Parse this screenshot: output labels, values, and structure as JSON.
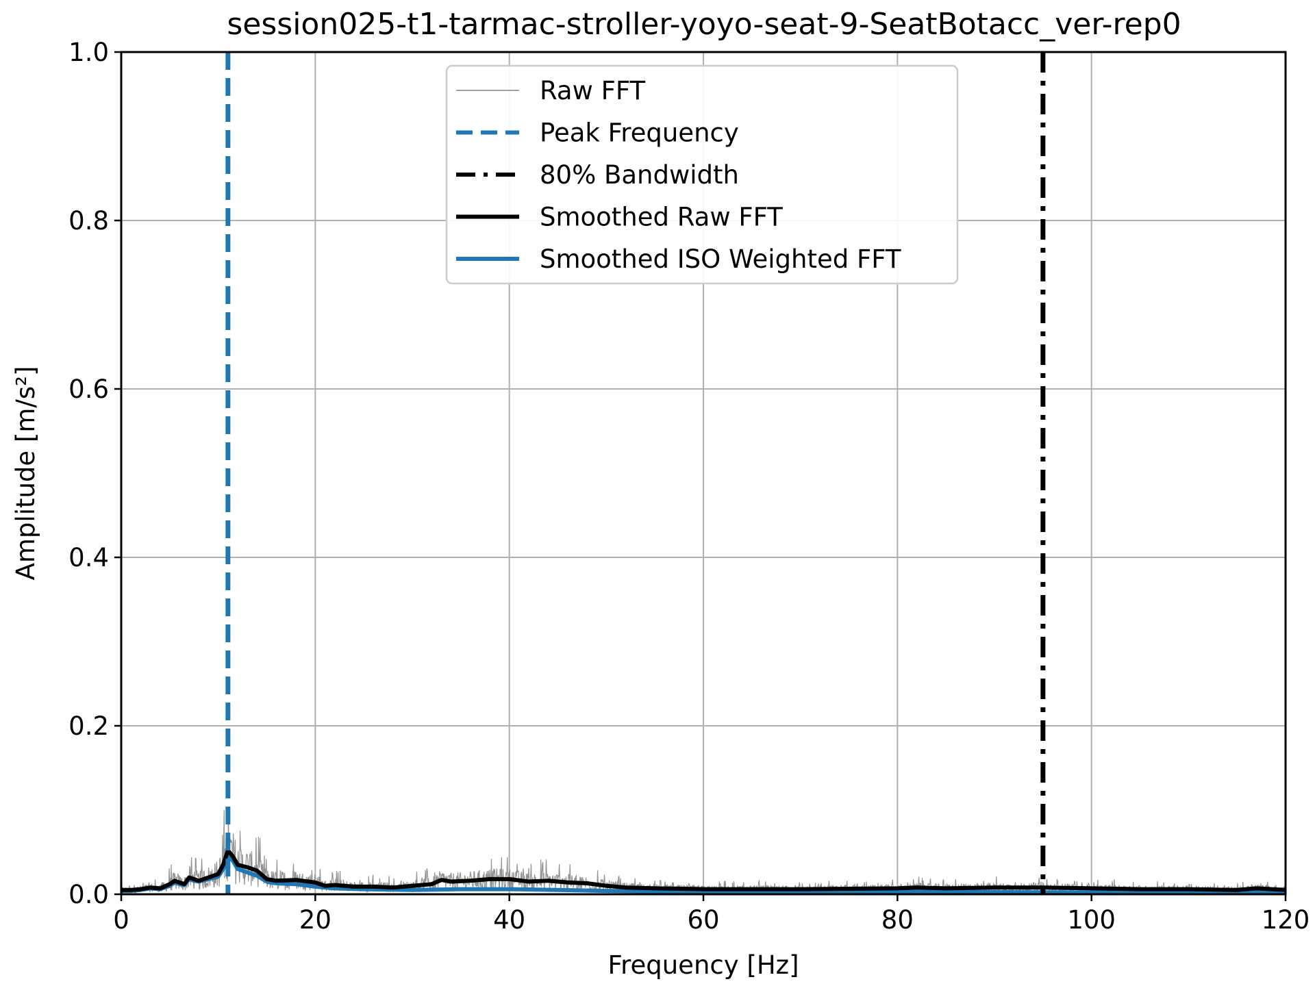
{
  "chart_data": {
    "type": "line",
    "title": "session025-t1-tarmac-stroller-yoyo-seat-9-SeatBotacc_ver-rep0",
    "xlabel": "Frequency [Hz]",
    "ylabel": "Amplitude [m/s²]",
    "xlim": [
      0,
      120
    ],
    "ylim": [
      0,
      1.0
    ],
    "xticks": [
      "0",
      "20",
      "40",
      "60",
      "80",
      "100",
      "120"
    ],
    "yticks": [
      "0.0",
      "0.2",
      "0.4",
      "0.6",
      "0.8",
      "1.0"
    ],
    "grid": true,
    "legend_position": "upper-center",
    "legend": [
      {
        "label": "Raw FFT",
        "color": "#808080",
        "style": "solid-thin"
      },
      {
        "label": "Peak Frequency",
        "color": "#1f77b4",
        "style": "dashed"
      },
      {
        "label": "80% Bandwidth",
        "color": "#000000",
        "style": "dashdot"
      },
      {
        "label": "Smoothed Raw FFT",
        "color": "#000000",
        "style": "solid-thick"
      },
      {
        "label": "Smoothed ISO Weighted FFT",
        "color": "#1f77b4",
        "style": "solid-thick"
      }
    ],
    "peak_frequency": 11.0,
    "bandwidth_80": 95.0,
    "series": [
      {
        "name": "Smoothed Raw FFT",
        "color": "#000000",
        "x": [
          0,
          1,
          2,
          3,
          4,
          5,
          5.5,
          6,
          6.5,
          7,
          7.5,
          8,
          9,
          10,
          10.5,
          11,
          11.5,
          12,
          13,
          14,
          15,
          16,
          18,
          20,
          21,
          22,
          24,
          26,
          28,
          30,
          32,
          33,
          34,
          36,
          38,
          40,
          42,
          44,
          46,
          48,
          50,
          52,
          55,
          60,
          70,
          80,
          82,
          85,
          90,
          95,
          100,
          105,
          110,
          115,
          117,
          120
        ],
        "y": [
          0.005,
          0.005,
          0.006,
          0.008,
          0.007,
          0.012,
          0.016,
          0.014,
          0.012,
          0.02,
          0.018,
          0.016,
          0.02,
          0.024,
          0.035,
          0.052,
          0.045,
          0.035,
          0.032,
          0.028,
          0.018,
          0.016,
          0.017,
          0.014,
          0.01,
          0.011,
          0.009,
          0.009,
          0.008,
          0.01,
          0.012,
          0.017,
          0.015,
          0.016,
          0.018,
          0.018,
          0.015,
          0.016,
          0.014,
          0.013,
          0.01,
          0.008,
          0.007,
          0.006,
          0.006,
          0.007,
          0.008,
          0.007,
          0.008,
          0.008,
          0.007,
          0.006,
          0.006,
          0.005,
          0.007,
          0.005
        ]
      },
      {
        "name": "Smoothed ISO Weighted FFT",
        "color": "#1f77b4",
        "x": [
          0,
          1,
          2,
          3,
          4,
          5,
          5.5,
          6,
          6.5,
          7,
          7.5,
          8,
          9,
          10,
          10.5,
          11,
          11.5,
          12,
          13,
          14,
          15,
          16,
          18,
          20,
          22,
          25,
          30,
          35,
          40,
          45,
          50,
          60,
          80,
          100,
          120
        ],
        "y": [
          0.004,
          0.004,
          0.005,
          0.007,
          0.006,
          0.01,
          0.014,
          0.012,
          0.011,
          0.018,
          0.016,
          0.015,
          0.018,
          0.021,
          0.03,
          0.046,
          0.04,
          0.03,
          0.026,
          0.022,
          0.015,
          0.013,
          0.012,
          0.009,
          0.007,
          0.006,
          0.005,
          0.006,
          0.006,
          0.005,
          0.004,
          0.003,
          0.003,
          0.002,
          0.002
        ]
      }
    ]
  }
}
